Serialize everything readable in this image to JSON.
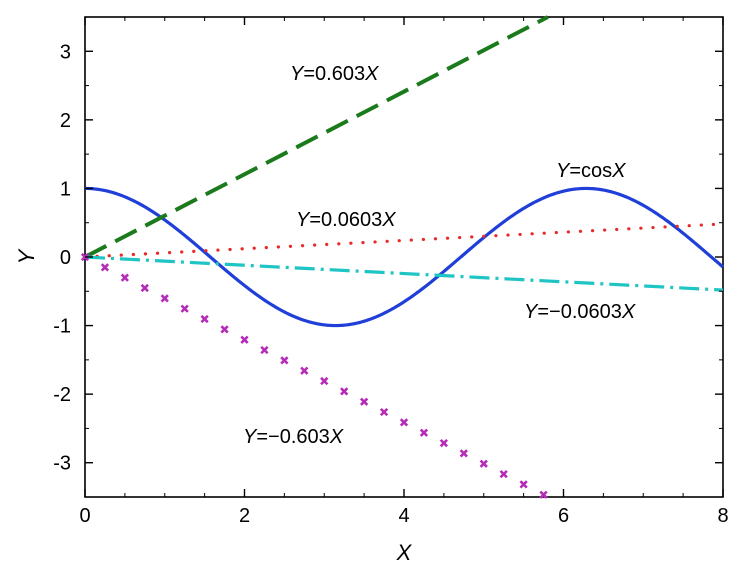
{
  "chart_data": {
    "type": "line",
    "xlabel": "X",
    "ylabel": "Y",
    "xlim": [
      0,
      8
    ],
    "ylim": [
      -3.5,
      3.5
    ],
    "xticks": [
      "0",
      "2",
      "4",
      "6",
      "8"
    ],
    "yticks": [
      "-3",
      "-2",
      "-1",
      "0",
      "1",
      "2",
      "3"
    ],
    "grid": false,
    "legend": "none",
    "series": [
      {
        "key": "cos",
        "expr": "cos",
        "color": "#1f3fd8",
        "style": "solid"
      },
      {
        "key": "pos_large",
        "slope": 0.603,
        "color": "#1b7a1b",
        "style": "dashed"
      },
      {
        "key": "pos_small",
        "slope": 0.0603,
        "color": "#e82a2a",
        "style": "dotted"
      },
      {
        "key": "neg_small",
        "slope": -0.0603,
        "color": "#1fc4c4",
        "style": "dash-dot"
      },
      {
        "key": "neg_large",
        "slope": -0.603,
        "color": "#b52cb8",
        "style": "cross-markers"
      }
    ],
    "annotations": {
      "pos_large": {
        "italic1": "Y",
        "mid": "=0.603",
        "italic2": "X"
      },
      "cos": {
        "italic1": "Y",
        "mid": "=cos",
        "italic2": "X"
      },
      "pos_small": {
        "italic1": "Y",
        "mid": "=0.0603",
        "italic2": "X"
      },
      "neg_small": {
        "italic1": "Y",
        "mid": "=−0.0603",
        "italic2": "X"
      },
      "neg_large": {
        "italic1": "Y",
        "mid": "=−0.603",
        "italic2": "X"
      }
    }
  }
}
